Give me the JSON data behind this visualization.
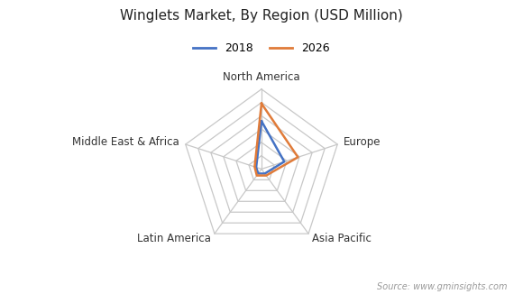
{
  "title": "Winglets Market, By Region (USD Million)",
  "categories": [
    "North America",
    "Europe",
    "Asia Pacific",
    "Latin America",
    "Middle East & Africa"
  ],
  "series": [
    {
      "label": "2018",
      "color": "#4472c4",
      "values": [
        0.6,
        0.3,
        0.07,
        0.07,
        0.07
      ]
    },
    {
      "label": "2026",
      "color": "#e07b39",
      "values": [
        0.82,
        0.48,
        0.1,
        0.1,
        0.09
      ]
    }
  ],
  "num_rings": 6,
  "background_color": "#ffffff",
  "grid_color": "#c8c8c8",
  "title_fontsize": 11,
  "label_fontsize": 8.5,
  "legend_fontsize": 9,
  "source_text": "Source: www.gminsights.com"
}
